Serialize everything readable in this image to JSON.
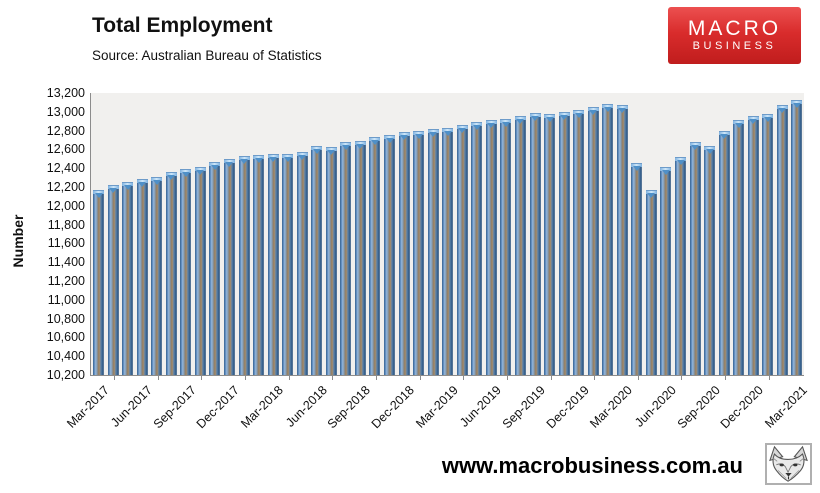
{
  "header": {
    "title": "Total Employment",
    "subtitle": "Source: Australian Bureau of Statistics",
    "logo": {
      "line1": "MACRO",
      "line2": "BUSINESS",
      "bg_top": "#ec5050",
      "bg_bottom": "#c01d1d"
    }
  },
  "footer": {
    "url": "www.macrobusiness.com.au"
  },
  "chart_data": {
    "type": "bar",
    "title": "Total Employment",
    "subtitle": "Source: Australian Bureau of Statistics",
    "xlabel": "",
    "ylabel": "Number",
    "ylim": [
      10200,
      13200
    ],
    "ytick_step": 200,
    "ytick_labels": [
      "13,200",
      "13,000",
      "12,800",
      "12,600",
      "12,400",
      "12,200",
      "12,000",
      "11,800",
      "11,600",
      "11,400",
      "11,200",
      "11,000",
      "10,800",
      "10,600",
      "10,400",
      "10,200"
    ],
    "x_tick_labels": [
      "Mar-2017",
      "Jun-2017",
      "Sep-2017",
      "Dec-2017",
      "Mar-2018",
      "Jun-2018",
      "Sep-2018",
      "Dec-2018",
      "Mar-2019",
      "Jun-2019",
      "Sep-2019",
      "Dec-2019",
      "Mar-2020",
      "Jun-2020",
      "Sep-2020",
      "Dec-2020",
      "Mar-2021"
    ],
    "categories": [
      "Mar-2017",
      "Apr-2017",
      "May-2017",
      "Jun-2017",
      "Jul-2017",
      "Aug-2017",
      "Sep-2017",
      "Oct-2017",
      "Nov-2017",
      "Dec-2017",
      "Jan-2018",
      "Feb-2018",
      "Mar-2018",
      "Apr-2018",
      "May-2018",
      "Jun-2018",
      "Jul-2018",
      "Aug-2018",
      "Sep-2018",
      "Oct-2018",
      "Nov-2018",
      "Dec-2018",
      "Jan-2019",
      "Feb-2019",
      "Mar-2019",
      "Apr-2019",
      "May-2019",
      "Jun-2019",
      "Jul-2019",
      "Aug-2019",
      "Sep-2019",
      "Oct-2019",
      "Nov-2019",
      "Dec-2019",
      "Jan-2020",
      "Feb-2020",
      "Mar-2020",
      "Apr-2020",
      "May-2020",
      "Jun-2020",
      "Jul-2020",
      "Aug-2020",
      "Sep-2020",
      "Oct-2020",
      "Nov-2020",
      "Dec-2020",
      "Jan-2021",
      "Feb-2021",
      "Mar-2021"
    ],
    "values": [
      12160,
      12210,
      12240,
      12270,
      12300,
      12350,
      12380,
      12400,
      12460,
      12490,
      12520,
      12530,
      12540,
      12540,
      12560,
      12630,
      12610,
      12670,
      12680,
      12720,
      12740,
      12770,
      12790,
      12810,
      12820,
      12850,
      12880,
      12900,
      12910,
      12940,
      12980,
      12970,
      12990,
      13010,
      13040,
      13070,
      13060,
      12440,
      12160,
      12400,
      12510,
      12670,
      12630,
      12790,
      12900,
      12940,
      12970,
      13060,
      13120
    ],
    "bar_color": "#4f81bd",
    "bar_center_color": "#8d7e6b",
    "plot_bg": "#f1f0ee",
    "axis_color": "#8c8c8c",
    "grid": false,
    "legend": false
  }
}
